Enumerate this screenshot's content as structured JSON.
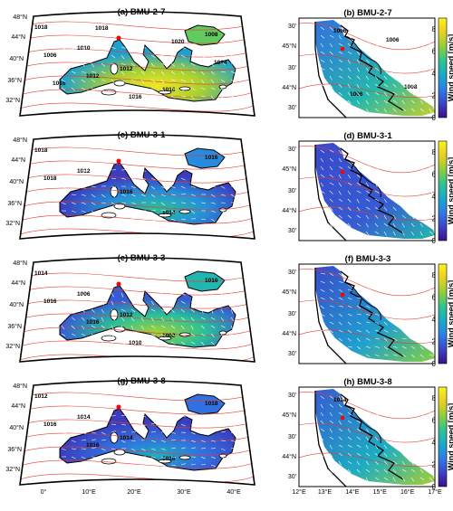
{
  "colors": {
    "colormap": [
      "#3a0f87",
      "#3b46c8",
      "#2f7ee6",
      "#1aa9c9",
      "#2ec48f",
      "#8fcf3b",
      "#e9d021",
      "#f9f41f"
    ],
    "isobar": "#e53b2c",
    "land": "#ffffff",
    "coast": "#000000",
    "arrow": "#ffffff",
    "marker": "#ff0000"
  },
  "colorbar": {
    "label": "Wind speed [m/s]",
    "ticks": [
      "0",
      "2",
      "4",
      "6",
      "8"
    ],
    "min": 0,
    "max": 9
  },
  "med_lat_labels": [
    "48°N",
    "44°N",
    "40°N",
    "36°N",
    "32°N"
  ],
  "med_lon_labels": [
    "0°",
    "10°E",
    "20°E",
    "30°E",
    "40°E"
  ],
  "adr_lat_labels": [
    "30'",
    "45°N",
    "30'",
    "44°N",
    "30'"
  ],
  "adr_lon_labels": [
    "12°E",
    "13°E",
    "14°E",
    "15°E",
    "16°E",
    "17°E"
  ],
  "rows": [
    {
      "left_title": "(a) BMU-2-7",
      "right_title": "(b) BMU-2-7",
      "med_isobars": [
        "1018",
        "1010",
        "1012",
        "1016",
        "1008",
        "1006",
        "1012",
        "1016",
        "1020",
        "1014",
        "1016",
        "1018"
      ],
      "adr_isobars": [
        "1006",
        "1006",
        "1008",
        "1006"
      ],
      "med_intensity": 0.75,
      "adr_intensity": 0.5
    },
    {
      "left_title": "(c) BMU-3-1",
      "right_title": "(d) BMU-3-1",
      "med_isobars": [
        "1018",
        "1012",
        "1016",
        "1014",
        "1016",
        "1018"
      ],
      "adr_isobars": [],
      "med_intensity": 0.35,
      "adr_intensity": 0.2
    },
    {
      "left_title": "(e) BMU-3-3",
      "right_title": "(f) BMU-3-3",
      "med_isobars": [
        "1014",
        "1006",
        "1012",
        "1008",
        "1010",
        "1016",
        "1016",
        "1010"
      ],
      "adr_isobars": [],
      "med_intensity": 0.55,
      "adr_intensity": 0.4
    },
    {
      "left_title": "(g) BMU-3-8",
      "right_title": "(h) BMU-3-8",
      "med_isobars": [
        "1012",
        "1014",
        "1014",
        "1016",
        "1018",
        "1016",
        "1016"
      ],
      "adr_isobars": [
        "1014"
      ],
      "med_intensity": 0.25,
      "adr_intensity": 0.45
    }
  ]
}
